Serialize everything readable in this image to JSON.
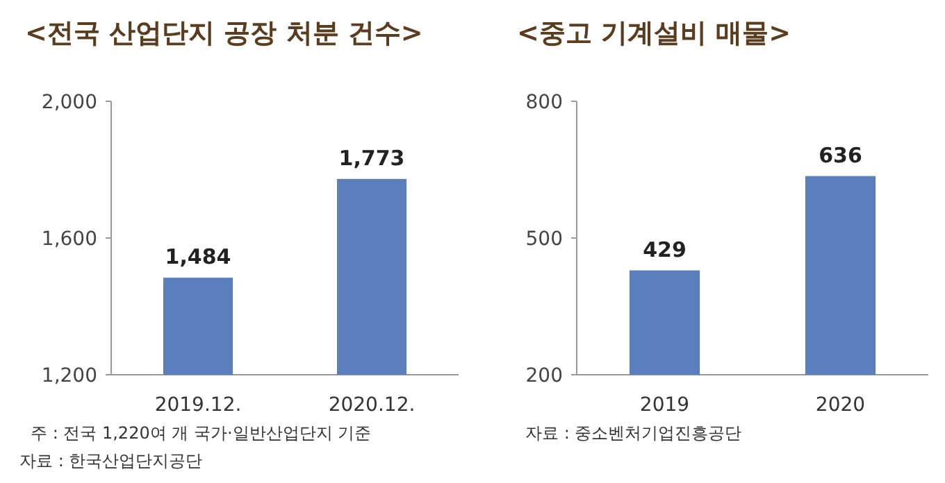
{
  "chart_data": [
    {
      "type": "bar",
      "title": "<전국 산업단지 공장 처분 건수>",
      "categories": [
        "2019.12.",
        "2020.12."
      ],
      "values": [
        1484,
        1773
      ],
      "value_labels": [
        "1,484",
        "1,773"
      ],
      "color": "#5b7fbd",
      "ylim": [
        1200,
        2000
      ],
      "yticks": [
        {
          "value": 1200,
          "label": "1,200"
        },
        {
          "value": 1600,
          "label": "1,600"
        },
        {
          "value": 2000,
          "label": "2,000"
        }
      ],
      "annotations": [
        "주 : 전국 1,220여 개 국가·일반산업단지 기준",
        "자료 : 한국산업단지공단"
      ]
    },
    {
      "type": "bar",
      "title": "<중고 기계설비 매물>",
      "categories": [
        "2019",
        "2020"
      ],
      "values": [
        429,
        636
      ],
      "color": "#5b7fbd",
      "ylim": [
        200,
        800
      ],
      "yticks": [
        200,
        500,
        800
      ],
      "data_labels": true,
      "annotations": [
        "자료 : 중소벤처기업진흥공단"
      ]
    }
  ]
}
